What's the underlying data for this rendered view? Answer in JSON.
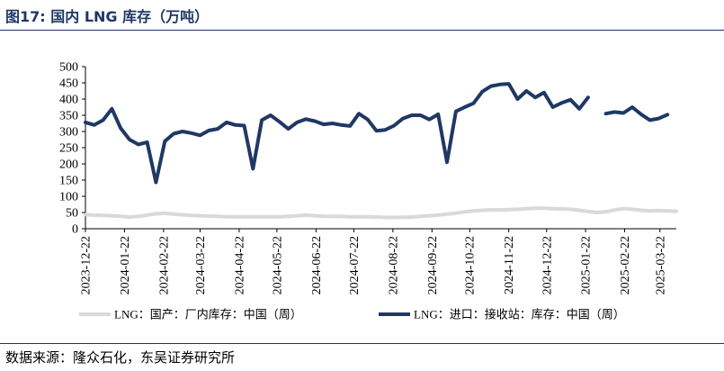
{
  "header": {
    "figure_label": "图17:",
    "title": "国内 LNG 库存（万吨）"
  },
  "footer": {
    "source": "数据来源：隆众石化，东吴证券研究所"
  },
  "colors": {
    "title": "#1f3864",
    "series_domestic": "#d9d9d9",
    "series_import": "#1f3864"
  },
  "chart_data": {
    "type": "line",
    "title": "国内 LNG 库存（万吨）",
    "xlabel": "",
    "ylabel": "",
    "ylim": [
      0,
      500
    ],
    "yticks": [
      0,
      50,
      100,
      150,
      200,
      250,
      300,
      350,
      400,
      450,
      500
    ],
    "grid": false,
    "legend_position": "bottom",
    "x_tick_labels": [
      "2023-12-22",
      "2024-01-22",
      "2024-02-22",
      "2024-03-22",
      "2024-04-22",
      "2024-05-22",
      "2024-06-22",
      "2024-07-22",
      "2024-08-22",
      "2024-09-22",
      "2024-10-22",
      "2024-11-22",
      "2024-12-22",
      "2025-01-22",
      "2025-02-22",
      "2025-03-22"
    ],
    "x_tick_week_index": [
      0,
      4.43,
      8.86,
      13,
      17.43,
      21.71,
      26.14,
      30.43,
      34.86,
      39.29,
      43.57,
      48,
      52.29,
      56.71,
      61.14,
      65.14
    ],
    "x_range": [
      0,
      67
    ],
    "series": [
      {
        "name": "LNG：国产：厂内库存：中国（周）",
        "color": "#d9d9d9",
        "values": [
          44,
          42,
          41,
          40,
          38,
          36,
          38,
          42,
          46,
          48,
          45,
          43,
          41,
          40,
          39,
          38,
          37,
          37,
          37,
          37,
          37,
          37,
          37,
          38,
          40,
          42,
          40,
          38,
          38,
          38,
          37,
          37,
          37,
          36,
          35,
          35,
          35,
          36,
          38,
          40,
          42,
          45,
          48,
          52,
          55,
          57,
          58,
          58,
          59,
          60,
          62,
          63,
          63,
          62,
          61,
          60,
          57,
          53,
          50,
          52,
          58,
          62,
          60,
          57,
          55,
          56,
          55,
          54
        ]
      },
      {
        "name": "LNG：进口：接收站：库存：中国（周）",
        "color": "#1f3864",
        "values": [
          328,
          320,
          335,
          370,
          310,
          275,
          260,
          267,
          143,
          270,
          293,
          300,
          295,
          288,
          303,
          308,
          328,
          320,
          318,
          185,
          335,
          350,
          330,
          308,
          328,
          338,
          332,
          322,
          325,
          320,
          317,
          355,
          337,
          302,
          305,
          318,
          340,
          350,
          350,
          337,
          353,
          205,
          362,
          375,
          387,
          423,
          440,
          445,
          447,
          400,
          425,
          405,
          420,
          375,
          388,
          398,
          370,
          405,
          null,
          355,
          360,
          357,
          375,
          353,
          335,
          340,
          352
        ]
      }
    ]
  }
}
